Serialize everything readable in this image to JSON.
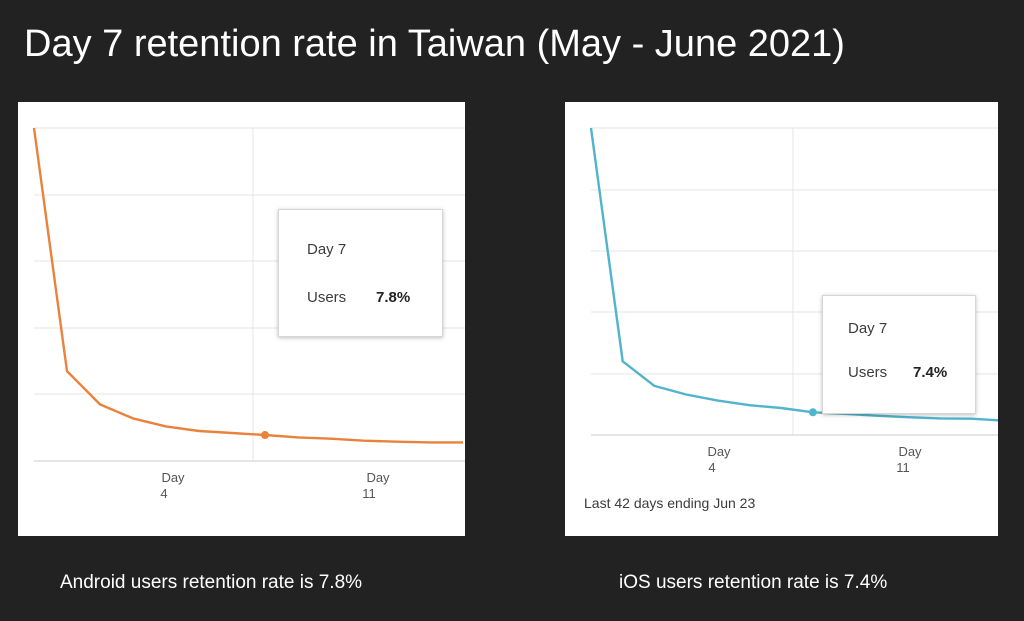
{
  "title": "Day 7 retention rate in Taiwan (May - June 2021)",
  "chart_data": [
    {
      "type": "line",
      "platform": "Android",
      "color": "#e8823d",
      "x_tick_labels": [
        {
          "line1": "Day",
          "line2": "4"
        },
        {
          "line1": "Day",
          "line2": "11"
        }
      ],
      "x": [
        0,
        1,
        2,
        3,
        4,
        5,
        6,
        7,
        8,
        9,
        10,
        11,
        12,
        13
      ],
      "values": [
        100,
        27,
        17,
        12.8,
        10.4,
        9,
        8.4,
        7.8,
        7.1,
        6.7,
        6.1,
        5.8,
        5.6,
        5.6
      ],
      "highlight_index": 7,
      "ylim": [
        0,
        100
      ],
      "tooltip": {
        "day": "Day 7",
        "metric": "Users",
        "value": "7.8%"
      },
      "caption": "Android users retention rate is 7.8%"
    },
    {
      "type": "line",
      "platform": "iOS",
      "color": "#52b3cc",
      "x_tick_labels": [
        {
          "line1": "Day",
          "line2": "4"
        },
        {
          "line1": "Day",
          "line2": "11"
        }
      ],
      "x": [
        0,
        1,
        2,
        3,
        4,
        5,
        6,
        7,
        8,
        9,
        10,
        11,
        12,
        13
      ],
      "values": [
        100,
        24,
        16,
        13.2,
        11.2,
        9.7,
        8.8,
        7.4,
        6.9,
        6.3,
        5.8,
        5.4,
        5.3,
        4.7
      ],
      "highlight_index": 7,
      "ylim": [
        0,
        100
      ],
      "tooltip": {
        "day": "Day 7",
        "metric": "Users",
        "value": "7.4%"
      },
      "note": "Last 42 days ending Jun 23",
      "caption": "iOS users retention rate is 7.4%"
    }
  ]
}
